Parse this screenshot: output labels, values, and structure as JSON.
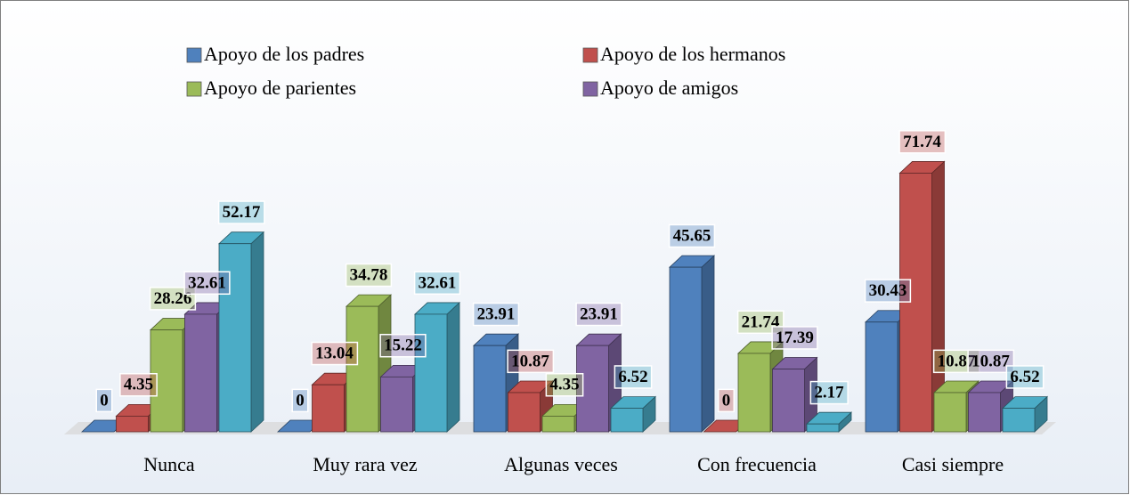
{
  "chart_data": {
    "type": "bar3d",
    "categories": [
      "Nunca",
      "Muy rara vez",
      "Algunas veces",
      "Con frecuencia",
      "Casi siempre"
    ],
    "series": [
      {
        "name": "Apoyo de los padres",
        "color": "#4f81bd",
        "values": [
          0,
          0,
          23.91,
          45.65,
          30.43
        ]
      },
      {
        "name": "Apoyo de los hermanos",
        "color": "#c0504d",
        "values": [
          4.35,
          13.04,
          10.87,
          0,
          71.74
        ]
      },
      {
        "name": "Apoyo de parientes",
        "color": "#9bbb59",
        "values": [
          28.26,
          34.78,
          4.35,
          21.74,
          10.87
        ]
      },
      {
        "name": "Apoyo de amigos",
        "color": "#8064a2",
        "values": [
          32.61,
          15.22,
          23.91,
          17.39,
          10.87
        ]
      },
      {
        "color": "#4bacc6",
        "values": [
          52.17,
          32.61,
          6.52,
          2.17,
          6.52
        ]
      }
    ]
  }
}
